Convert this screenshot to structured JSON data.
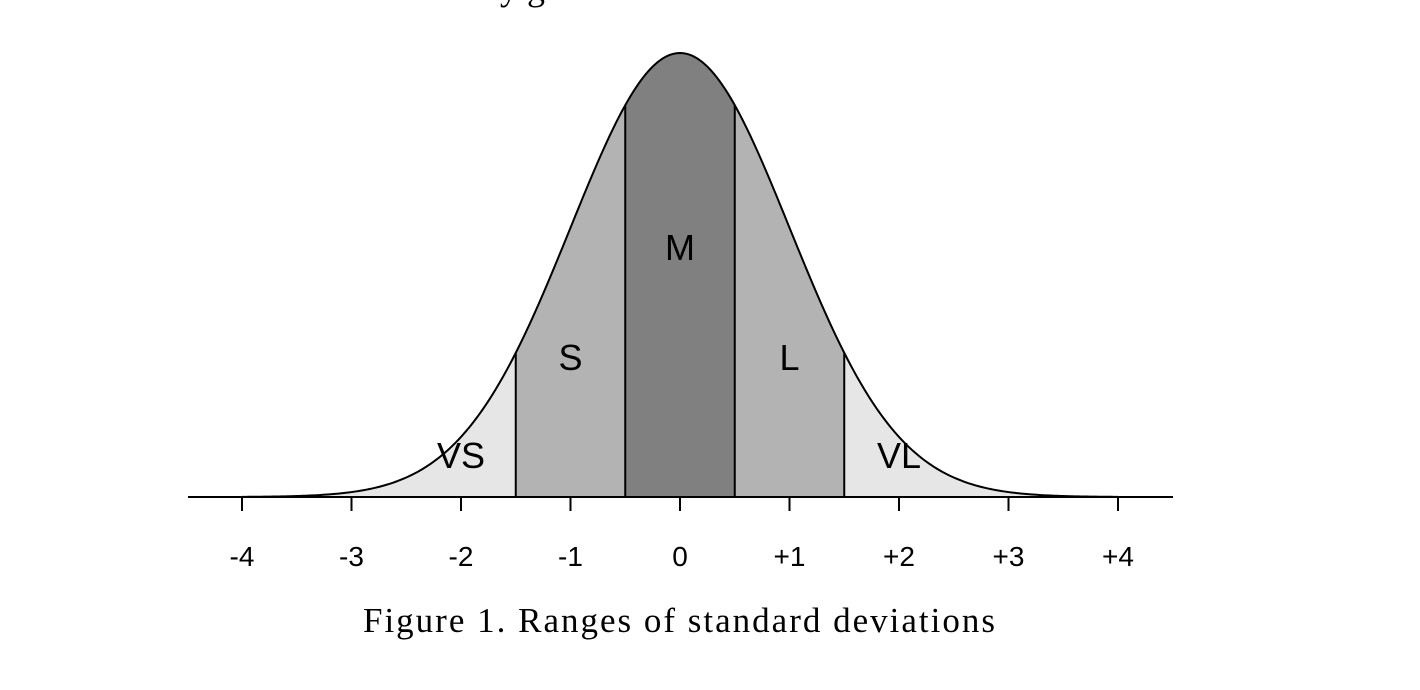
{
  "chart_data": {
    "type": "area",
    "distribution": "normal",
    "mean": 0,
    "sd": 1,
    "xlim": [
      -4,
      4
    ],
    "ticks": [
      -4,
      -3,
      -2,
      -1,
      0,
      1,
      2,
      3,
      4
    ],
    "tick_labels": [
      "-4",
      "-3",
      "-2",
      "-1",
      "0",
      "+1",
      "+2",
      "+3",
      "+4"
    ],
    "regions": [
      {
        "label": "VS",
        "from": -4,
        "to": -1.5,
        "color": "#e6e6e6"
      },
      {
        "label": "S",
        "from": -1.5,
        "to": -0.5,
        "color": "#b3b3b3"
      },
      {
        "label": "M",
        "from": -0.5,
        "to": 0.5,
        "color": "#808080"
      },
      {
        "label": "L",
        "from": 0.5,
        "to": 1.5,
        "color": "#b3b3b3"
      },
      {
        "label": "VL",
        "from": 1.5,
        "to": 4,
        "color": "#e6e6e6"
      }
    ],
    "boundaries": [
      -1.5,
      -0.5,
      0.5,
      1.5
    ],
    "caption": "Figure 1. Ranges of standard deviations",
    "top_text": "y g"
  }
}
